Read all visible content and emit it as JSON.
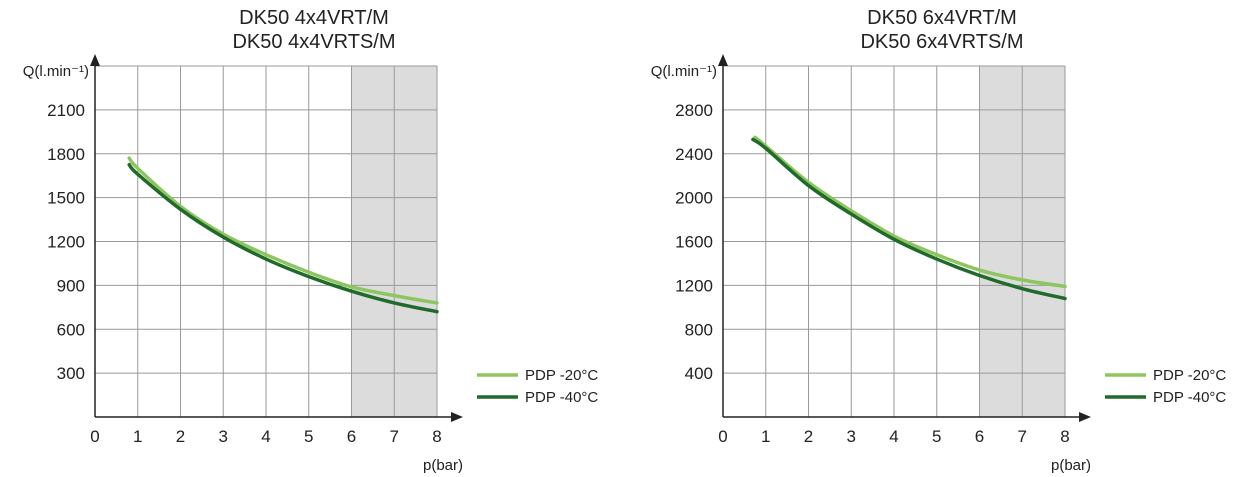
{
  "chart_data": [
    {
      "type": "line",
      "title": [
        "DK50 4x4VRT/M",
        "DK50 4x4VRTS/M"
      ],
      "ylabel": "Q(l.min⁻¹)",
      "xlabel": "p(bar)",
      "xlim": [
        0,
        8
      ],
      "ylim": [
        0,
        2400
      ],
      "xticks": [
        0,
        1,
        2,
        3,
        4,
        5,
        6,
        7,
        8
      ],
      "yticks": [
        300,
        600,
        900,
        1200,
        1500,
        1800,
        2100
      ],
      "shaded_range": [
        6,
        8
      ],
      "shade_color": "#dcdcdc",
      "grid": true,
      "legend_position": "right",
      "series": [
        {
          "name": "PDP -20°C",
          "color": "#8dc55f",
          "x": [
            0.8,
            1,
            2,
            3,
            4,
            5,
            6,
            7,
            8
          ],
          "y": [
            1770,
            1700,
            1440,
            1250,
            1110,
            990,
            890,
            830,
            780
          ]
        },
        {
          "name": "PDP -40°C",
          "color": "#1f6b2a",
          "x": [
            0.8,
            1,
            2,
            3,
            4,
            5,
            6,
            7,
            8
          ],
          "y": [
            1725,
            1660,
            1420,
            1230,
            1080,
            960,
            860,
            780,
            720
          ]
        }
      ]
    },
    {
      "type": "line",
      "title": [
        "DK50 6x4VRT/M",
        "DK50 6x4VRTS/M"
      ],
      "ylabel": "Q(l.min⁻¹)",
      "xlabel": "p(bar)",
      "xlim": [
        0,
        8
      ],
      "ylim": [
        0,
        3200
      ],
      "xticks": [
        0,
        1,
        2,
        3,
        4,
        5,
        6,
        7,
        8
      ],
      "yticks": [
        400,
        800,
        1200,
        1600,
        2000,
        2400,
        2800
      ],
      "shaded_range": [
        6,
        8
      ],
      "shade_color": "#dcdcdc",
      "grid": true,
      "legend_position": "right",
      "series": [
        {
          "name": "PDP -20°C",
          "color": "#8dc55f",
          "x": [
            0.75,
            1,
            2,
            3,
            4,
            5,
            6,
            7,
            8
          ],
          "y": [
            2550,
            2470,
            2140,
            1880,
            1650,
            1480,
            1340,
            1250,
            1190
          ]
        },
        {
          "name": "PDP -40°C",
          "color": "#1f6b2a",
          "x": [
            0.7,
            1,
            2,
            3,
            4,
            5,
            6,
            7,
            8
          ],
          "y": [
            2530,
            2450,
            2110,
            1850,
            1620,
            1440,
            1290,
            1170,
            1080
          ]
        }
      ]
    }
  ]
}
